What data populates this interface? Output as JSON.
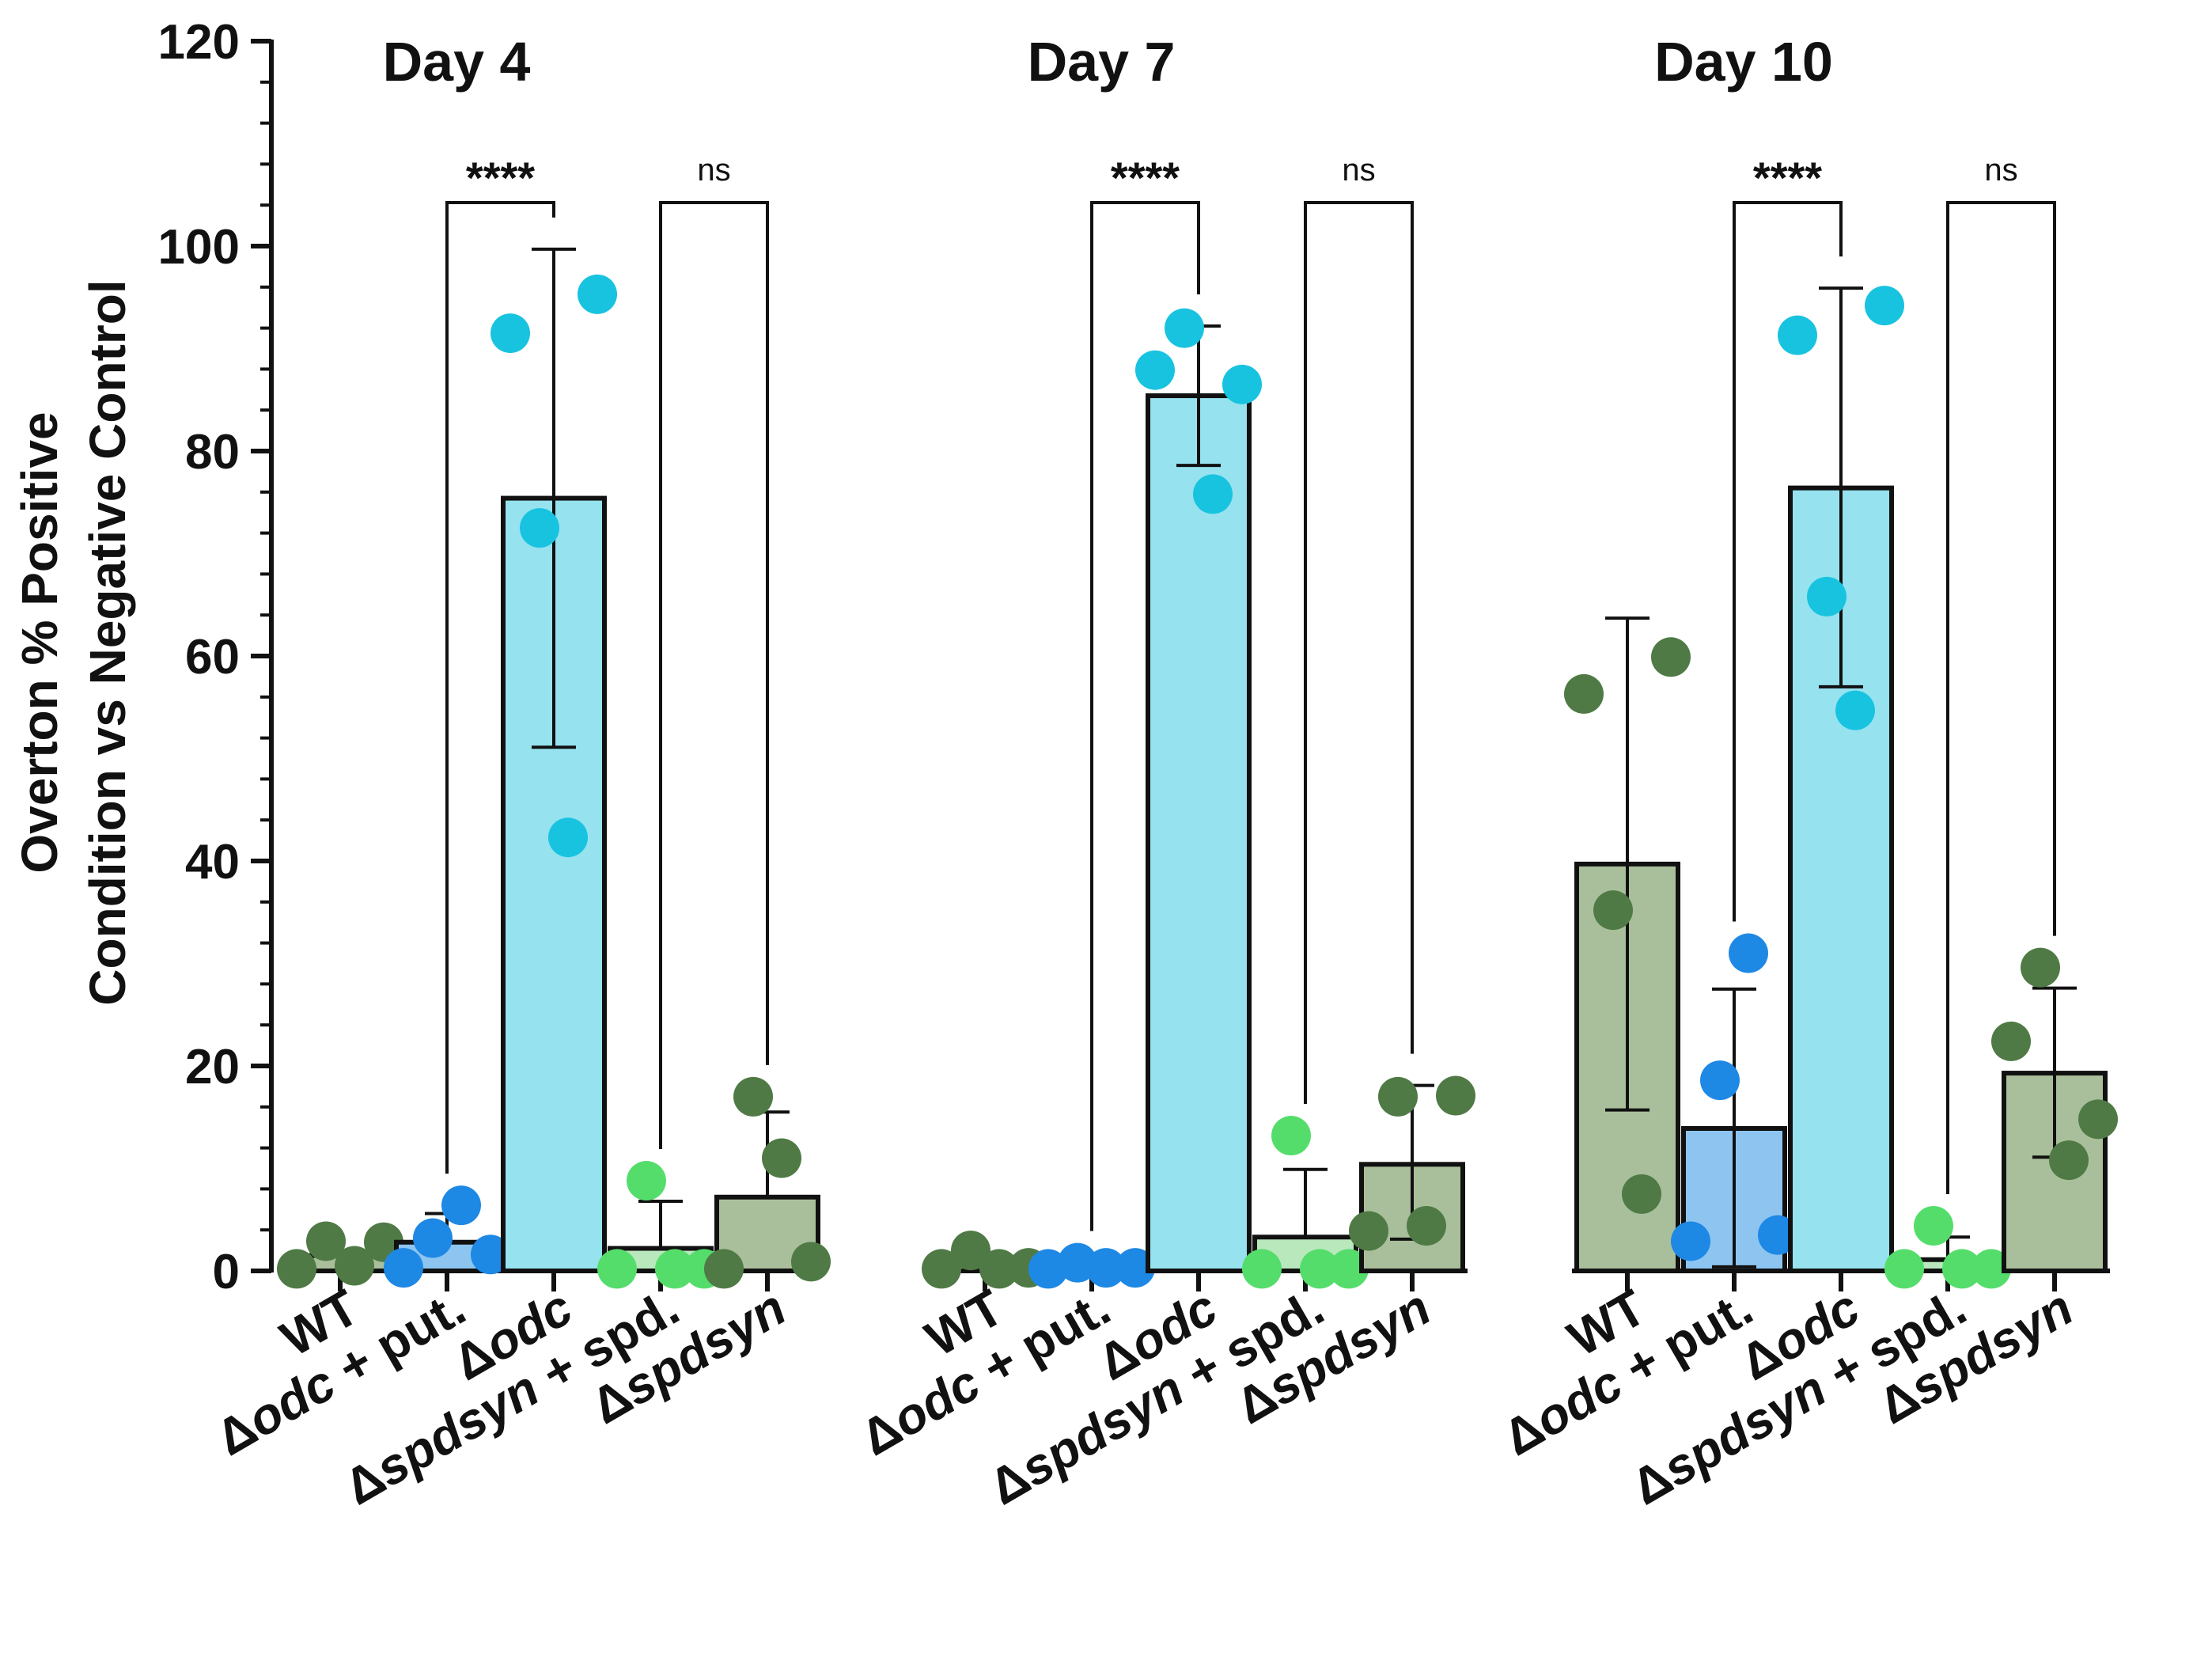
{
  "chart_data": {
    "type": "bar",
    "ylabel_line1": "Overton % Positive",
    "ylabel_line2": "Condition vs Negative Control",
    "ylim": [
      0,
      120
    ],
    "yticks": [
      0,
      20,
      40,
      60,
      80,
      100,
      120
    ],
    "grid": false,
    "category_labels": [
      {
        "delta": "",
        "italic": "",
        "rest": "WT"
      },
      {
        "delta": "Δ",
        "italic": "odc",
        "rest": " + put."
      },
      {
        "delta": "Δ",
        "italic": "odc",
        "rest": ""
      },
      {
        "delta": "Δ",
        "italic": "spdsyn",
        "rest": " + spd."
      },
      {
        "delta": "Δ",
        "italic": "spdsyn",
        "rest": ""
      }
    ],
    "colors": {
      "dark_green": "#4f7a45",
      "bar_green": "#a9bf9b",
      "blue": "#1e88e5",
      "bar_blue": "#8ec5f0",
      "cyan": "#18c3e0",
      "bar_cyan": "#96e2ef",
      "light_green": "#55dd6b",
      "bar_light_green": "#b9e8bd",
      "outline": "#111111"
    },
    "groups": [
      {
        "title": "Day 4",
        "bars": [
          {
            "mean": 1.5,
            "sd_low": 1.5,
            "sd_high": 1.5,
            "points": [
              0.2,
              2.9,
              0.5,
              2.8
            ],
            "fill": "bar_green",
            "dot": "dark_green"
          },
          {
            "mean": 2.8,
            "sd_low": 2.8,
            "sd_high": 5.6,
            "points": [
              0.3,
              3.2,
              6.4,
              1.6
            ],
            "fill": "bar_blue",
            "dot": "blue"
          },
          {
            "mean": 75.4,
            "sd_low": 51.1,
            "sd_high": 99.7,
            "points": [
              91.5,
              72.5,
              42.3,
              95.3
            ],
            "fill": "bar_cyan",
            "dot": "cyan"
          },
          {
            "mean": 2.2,
            "sd_low": 2.2,
            "sd_high": 6.8,
            "points": [
              0.2,
              8.8,
              0.2,
              0.2
            ],
            "fill": "bar_light_green",
            "dot": "light_green"
          },
          {
            "mean": 7.2,
            "sd_low": 7.2,
            "sd_high": 15.5,
            "points": [
              0.2,
              17.0,
              11.0,
              0.9
            ],
            "fill": "bar_green",
            "dot": "dark_green"
          }
        ],
        "comparisons": [
          {
            "from": 1,
            "to": 2,
            "label": "****"
          },
          {
            "from": 3,
            "to": 4,
            "label": "ns"
          }
        ]
      },
      {
        "title": "Day 7",
        "bars": [
          {
            "mean": 0.9,
            "sd_low": 0.9,
            "sd_high": 0.9,
            "points": [
              0.2,
              2.0,
              0.2,
              0.3
            ],
            "fill": "bar_green",
            "dot": "dark_green"
          },
          {
            "mean": 0.4,
            "sd_low": 0.4,
            "sd_high": 0.4,
            "points": [
              0.2,
              0.8,
              0.3,
              0.3
            ],
            "fill": "bar_blue",
            "dot": "blue"
          },
          {
            "mean": 85.4,
            "sd_low": 78.6,
            "sd_high": 92.2,
            "points": [
              87.9,
              92.0,
              75.8,
              86.5
            ],
            "fill": "bar_cyan",
            "dot": "cyan"
          },
          {
            "mean": 3.3,
            "sd_low": 3.3,
            "sd_high": 9.9,
            "points": [
              0.2,
              13.2,
              0.2,
              0.2
            ],
            "fill": "bar_light_green",
            "dot": "light_green"
          },
          {
            "mean": 10.4,
            "sd_low": 3.1,
            "sd_high": 18.1,
            "points": [
              3.9,
              17.0,
              4.4,
              17.1
            ],
            "fill": "bar_green",
            "dot": "dark_green"
          }
        ],
        "comparisons": [
          {
            "from": 1,
            "to": 2,
            "label": "****"
          },
          {
            "from": 3,
            "to": 4,
            "label": "ns"
          }
        ]
      },
      {
        "title": "Day 10",
        "bars": [
          {
            "mean": 39.7,
            "sd_low": 15.7,
            "sd_high": 63.7,
            "points": [
              56.3,
              35.2,
              7.5,
              59.9
            ],
            "fill": "bar_green",
            "dot": "dark_green"
          },
          {
            "mean": 13.9,
            "sd_low": 0.4,
            "sd_high": 27.5,
            "points": [
              2.9,
              18.6,
              31.0,
              3.5
            ],
            "fill": "bar_blue",
            "dot": "blue"
          },
          {
            "mean": 76.4,
            "sd_low": 57.0,
            "sd_high": 95.9,
            "points": [
              91.3,
              65.8,
              54.7,
              94.2
            ],
            "fill": "bar_cyan",
            "dot": "cyan"
          },
          {
            "mean": 1.1,
            "sd_low": 0,
            "sd_high": 3.3,
            "points": [
              0.2,
              4.4,
              0.2,
              0.2
            ],
            "fill": "bar_light_green",
            "dot": "light_green"
          },
          {
            "mean": 19.3,
            "sd_low": 11.1,
            "sd_high": 27.6,
            "points": [
              22.4,
              29.6,
              10.8,
              14.8
            ],
            "fill": "bar_green",
            "dot": "dark_green"
          }
        ],
        "comparisons": [
          {
            "from": 1,
            "to": 2,
            "label": "****"
          },
          {
            "from": 3,
            "to": 4,
            "label": "ns"
          }
        ]
      }
    ]
  }
}
